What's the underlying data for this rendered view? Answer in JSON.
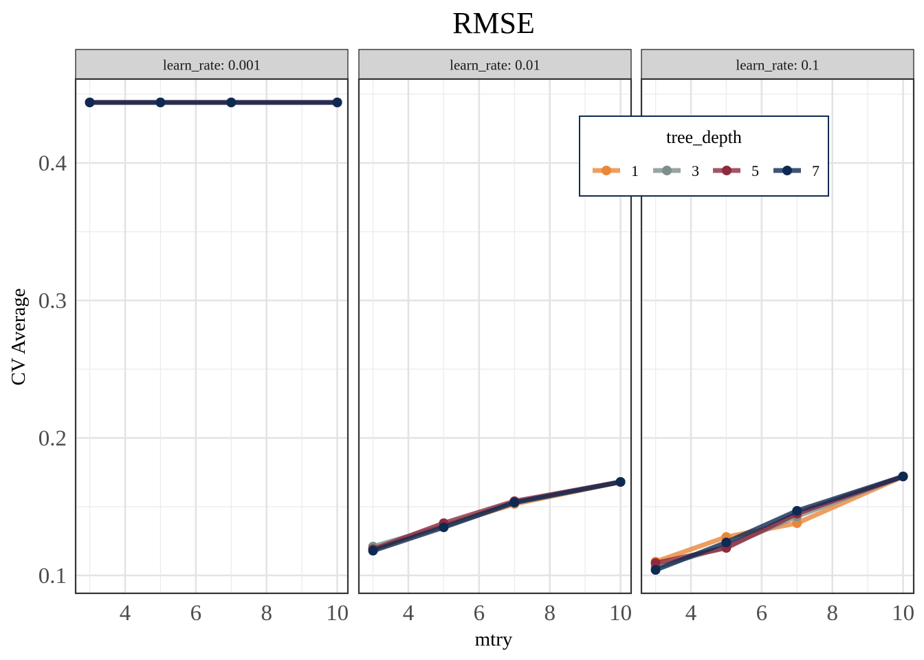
{
  "chart_data": {
    "type": "line",
    "title": "RMSE",
    "xlabel": "mtry",
    "ylabel": "CV Average",
    "x": [
      3,
      5,
      7,
      10
    ],
    "xlim": [
      2.6,
      10.3
    ],
    "ylim": [
      0.087,
      0.461
    ],
    "xticks": [
      4,
      6,
      8,
      10
    ],
    "yticks": [
      0.1,
      0.2,
      0.3,
      0.4
    ],
    "ytick_labels": [
      "0.1",
      "0.2",
      "0.3",
      "0.4"
    ],
    "grid": true,
    "legend": {
      "title": "tree_depth",
      "placement": "top-right, inside plot area",
      "entries": [
        "1",
        "3",
        "5",
        "7"
      ]
    },
    "colors": {
      "1": "#E8873A",
      "3": "#7E8E8C",
      "5": "#8E2A3E",
      "7": "#0F2A52"
    },
    "facets": [
      {
        "label": "learn_rate: 0.001",
        "series": [
          {
            "name": "1",
            "values": [
              0.444,
              0.444,
              0.444,
              0.444
            ]
          },
          {
            "name": "3",
            "values": [
              0.444,
              0.444,
              0.444,
              0.444
            ]
          },
          {
            "name": "5",
            "values": [
              0.444,
              0.444,
              0.444,
              0.444
            ]
          },
          {
            "name": "7",
            "values": [
              0.444,
              0.444,
              0.444,
              0.444
            ]
          }
        ]
      },
      {
        "label": "learn_rate: 0.01",
        "series": [
          {
            "name": "1",
            "values": [
              0.119,
              0.136,
              0.152,
              0.168
            ]
          },
          {
            "name": "3",
            "values": [
              0.121,
              0.136,
              0.153,
              0.168
            ]
          },
          {
            "name": "5",
            "values": [
              0.119,
              0.138,
              0.154,
              0.168
            ]
          },
          {
            "name": "7",
            "values": [
              0.118,
              0.135,
              0.153,
              0.168
            ]
          }
        ]
      },
      {
        "label": "learn_rate: 0.1",
        "series": [
          {
            "name": "1",
            "values": [
              0.11,
              0.128,
              0.138,
              0.172
            ]
          },
          {
            "name": "3",
            "values": [
              0.106,
              0.121,
              0.143,
              0.172
            ]
          },
          {
            "name": "5",
            "values": [
              0.109,
              0.12,
              0.145,
              0.172
            ]
          },
          {
            "name": "7",
            "values": [
              0.104,
              0.124,
              0.147,
              0.172
            ]
          }
        ]
      }
    ]
  }
}
